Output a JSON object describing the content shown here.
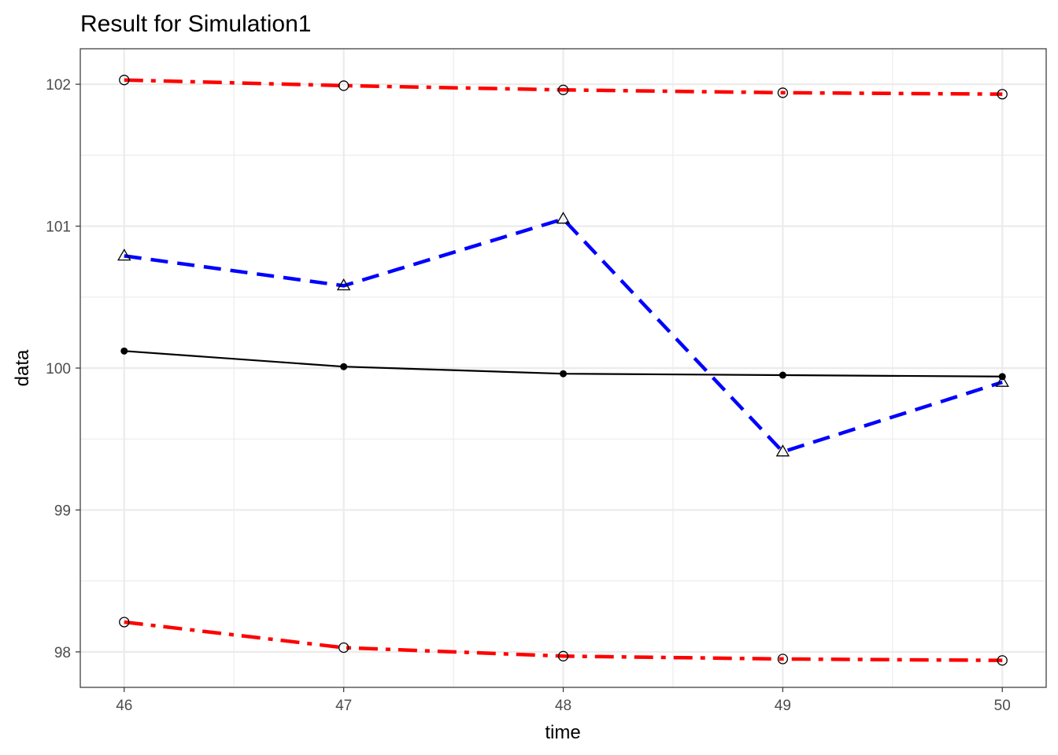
{
  "chart_data": {
    "type": "line",
    "title": "Result for Simulation1",
    "xlabel": "time",
    "ylabel": "data",
    "x": [
      46,
      47,
      48,
      49,
      50
    ],
    "xlim": [
      45.8,
      50.2
    ],
    "ylim": [
      97.75,
      102.25
    ],
    "xticks": [
      46,
      47,
      48,
      49,
      50
    ],
    "yticks": [
      98,
      99,
      100,
      101,
      102
    ],
    "grid": true,
    "legend": "none",
    "series": [
      {
        "values": [
          102.03,
          101.99,
          101.96,
          101.94,
          101.93
        ],
        "color": "#ff0000",
        "line": "dashdot",
        "marker": "open-circle"
      },
      {
        "values": [
          100.79,
          100.58,
          101.05,
          99.41,
          99.9
        ],
        "color": "#0000ff",
        "line": "dashed",
        "marker": "open-triangle"
      },
      {
        "values": [
          100.12,
          100.01,
          99.96,
          99.95,
          99.94
        ],
        "color": "#000000",
        "line": "solid",
        "marker": "filled-circle"
      },
      {
        "values": [
          98.21,
          98.03,
          97.97,
          97.95,
          97.94
        ],
        "color": "#ff0000",
        "line": "dashdot",
        "marker": "open-circle"
      }
    ]
  }
}
